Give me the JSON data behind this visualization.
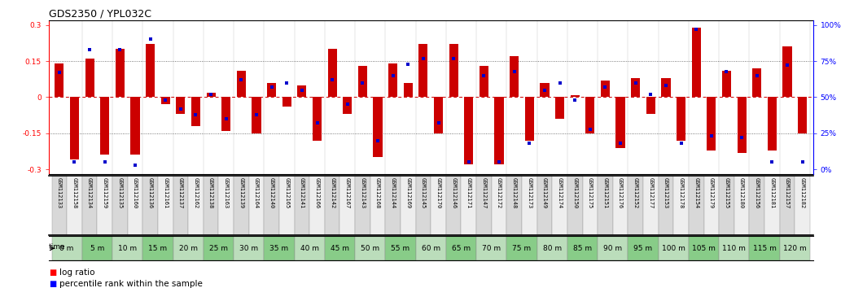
{
  "title": "GDS2350 / YPL032C",
  "gsm_labels": [
    "GSM112133",
    "GSM112158",
    "GSM112134",
    "GSM112159",
    "GSM112135",
    "GSM112160",
    "GSM112136",
    "GSM112161",
    "GSM112137",
    "GSM112162",
    "GSM112138",
    "GSM112163",
    "GSM112139",
    "GSM112164",
    "GSM112140",
    "GSM112165",
    "GSM112141",
    "GSM112166",
    "GSM112142",
    "GSM112167",
    "GSM112143",
    "GSM112168",
    "GSM112144",
    "GSM112169",
    "GSM112145",
    "GSM112170",
    "GSM112146",
    "GSM112171",
    "GSM112147",
    "GSM112172",
    "GSM112148",
    "GSM112173",
    "GSM112149",
    "GSM112174",
    "GSM112150",
    "GSM112175",
    "GSM112151",
    "GSM112176",
    "GSM112152",
    "GSM112177",
    "GSM112153",
    "GSM112178",
    "GSM112154",
    "GSM112179",
    "GSM112155",
    "GSM112180",
    "GSM112156",
    "GSM112181",
    "GSM112157",
    "GSM112182"
  ],
  "time_labels": [
    "0 m",
    "5 m",
    "10 m",
    "15 m",
    "20 m",
    "25 m",
    "30 m",
    "35 m",
    "40 m",
    "45 m",
    "50 m",
    "55 m",
    "60 m",
    "65 m",
    "70 m",
    "75 m",
    "80 m",
    "85 m",
    "90 m",
    "95 m",
    "100 m",
    "105 m",
    "110 m",
    "115 m",
    "120 m"
  ],
  "log_ratio": [
    0.14,
    -0.26,
    0.16,
    -0.24,
    0.2,
    -0.24,
    0.22,
    -0.03,
    -0.07,
    -0.12,
    0.02,
    -0.14,
    0.11,
    -0.15,
    0.06,
    -0.04,
    0.05,
    -0.18,
    0.2,
    -0.07,
    0.13,
    -0.25,
    0.14,
    0.06,
    0.22,
    -0.15,
    0.22,
    -0.28,
    0.13,
    -0.28,
    0.17,
    -0.18,
    0.06,
    -0.09,
    0.01,
    -0.15,
    0.07,
    -0.21,
    0.08,
    -0.07,
    0.08,
    -0.18,
    0.29,
    -0.22,
    0.11,
    -0.23,
    0.12,
    -0.22,
    0.21,
    -0.15
  ],
  "percentile": [
    67,
    5,
    83,
    5,
    83,
    3,
    90,
    48,
    42,
    38,
    52,
    35,
    62,
    38,
    57,
    60,
    55,
    32,
    62,
    45,
    60,
    20,
    65,
    73,
    77,
    32,
    77,
    5,
    65,
    5,
    68,
    18,
    55,
    60,
    48,
    28,
    57,
    18,
    60,
    52,
    58,
    18,
    97,
    23,
    68,
    22,
    65,
    5,
    72,
    5
  ],
  "bar_color": "#cc0000",
  "dot_color": "#0000cc",
  "zero_line_color": "#cc0000",
  "dotted_line_color": "#555555",
  "bg_color": "#ffffff",
  "ylim": [
    -0.32,
    0.32
  ],
  "yticks_left": [
    -0.3,
    -0.15,
    0.0,
    0.15,
    0.3
  ],
  "ytick_labels_left": [
    "-0.3",
    "-0.15",
    "0",
    "0.15",
    "0.3"
  ],
  "right_yticks_pct": [
    0,
    25,
    50,
    75,
    100
  ],
  "hlines_dotted": [
    0.15,
    -0.15
  ],
  "title_fontsize": 9,
  "tick_fontsize": 6.5,
  "legend_fontsize": 7.5,
  "time_label_fontsize": 6.5,
  "gsm_label_fontsize": 5.0,
  "bar_width": 0.6,
  "dot_size": 11,
  "gsm_bg_even": "#d8d8d8",
  "gsm_bg_odd": "#eeeeee",
  "time_bg_even": "#bbddbb",
  "time_bg_odd": "#88cc88",
  "time_edge": "#888888"
}
